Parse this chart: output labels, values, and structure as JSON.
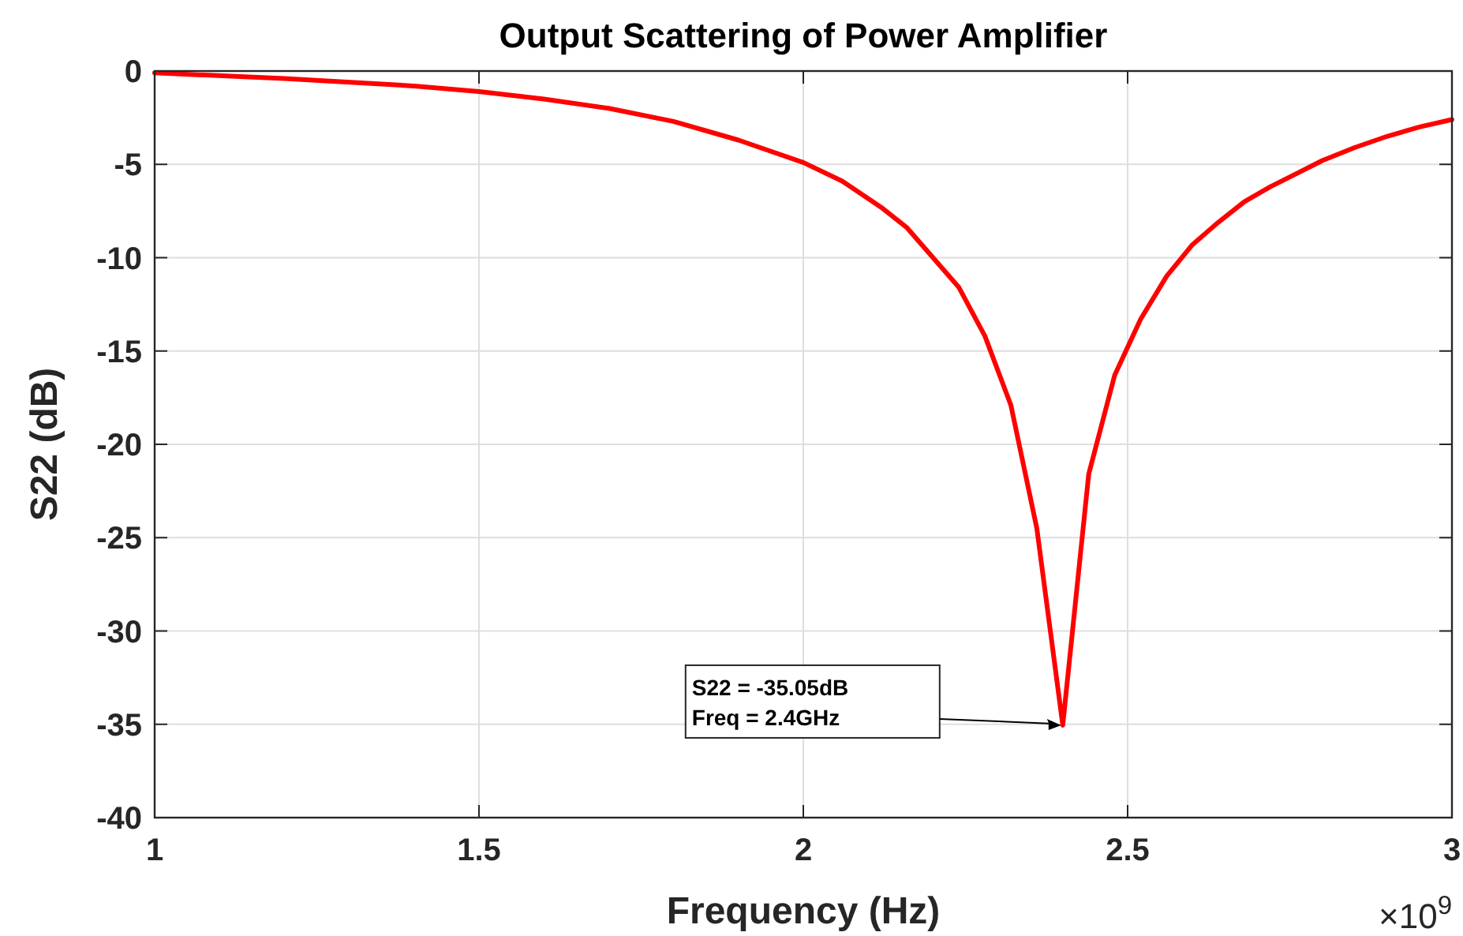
{
  "chart_data": {
    "type": "line",
    "title": "Output Scattering of Power Amplifier",
    "xlabel": "Frequency (Hz)",
    "ylabel": "S22 (dB)",
    "x": [
      1.0,
      1.2,
      1.4,
      1.5,
      1.6,
      1.7,
      1.8,
      1.9,
      2.0,
      2.06,
      2.12,
      2.16,
      2.2,
      2.24,
      2.28,
      2.32,
      2.36,
      2.4,
      2.44,
      2.48,
      2.52,
      2.56,
      2.6,
      2.64,
      2.68,
      2.72,
      2.76,
      2.8,
      2.85,
      2.9,
      2.95,
      3.0
    ],
    "series": [
      {
        "color": "#ff0000",
        "values": [
          -0.1,
          -0.4,
          -0.8,
          -1.1,
          -1.5,
          -2.0,
          -2.7,
          -3.7,
          -4.9,
          -5.9,
          -7.3,
          -8.4,
          -10.0,
          -11.6,
          -14.2,
          -17.9,
          -24.5,
          -35.05,
          -21.6,
          -16.3,
          -13.3,
          -11.0,
          -9.3,
          -8.1,
          -7.0,
          -6.2,
          -5.5,
          -4.8,
          -4.1,
          -3.5,
          -3.0,
          -2.6
        ]
      }
    ],
    "xlim": [
      1,
      3
    ],
    "xticks": [
      1,
      1.5,
      2,
      2.5,
      3
    ],
    "ylim": [
      -40,
      0
    ],
    "yticks": [
      -40,
      -35,
      -30,
      -25,
      -20,
      -15,
      -10,
      -5,
      0
    ],
    "grid": true,
    "marker": "none",
    "line_style": "solid",
    "annotations": [
      "S22 = -35.05dB\nFreq = 2.4GHz",
      "×10$^{9}$"
    ]
  }
}
